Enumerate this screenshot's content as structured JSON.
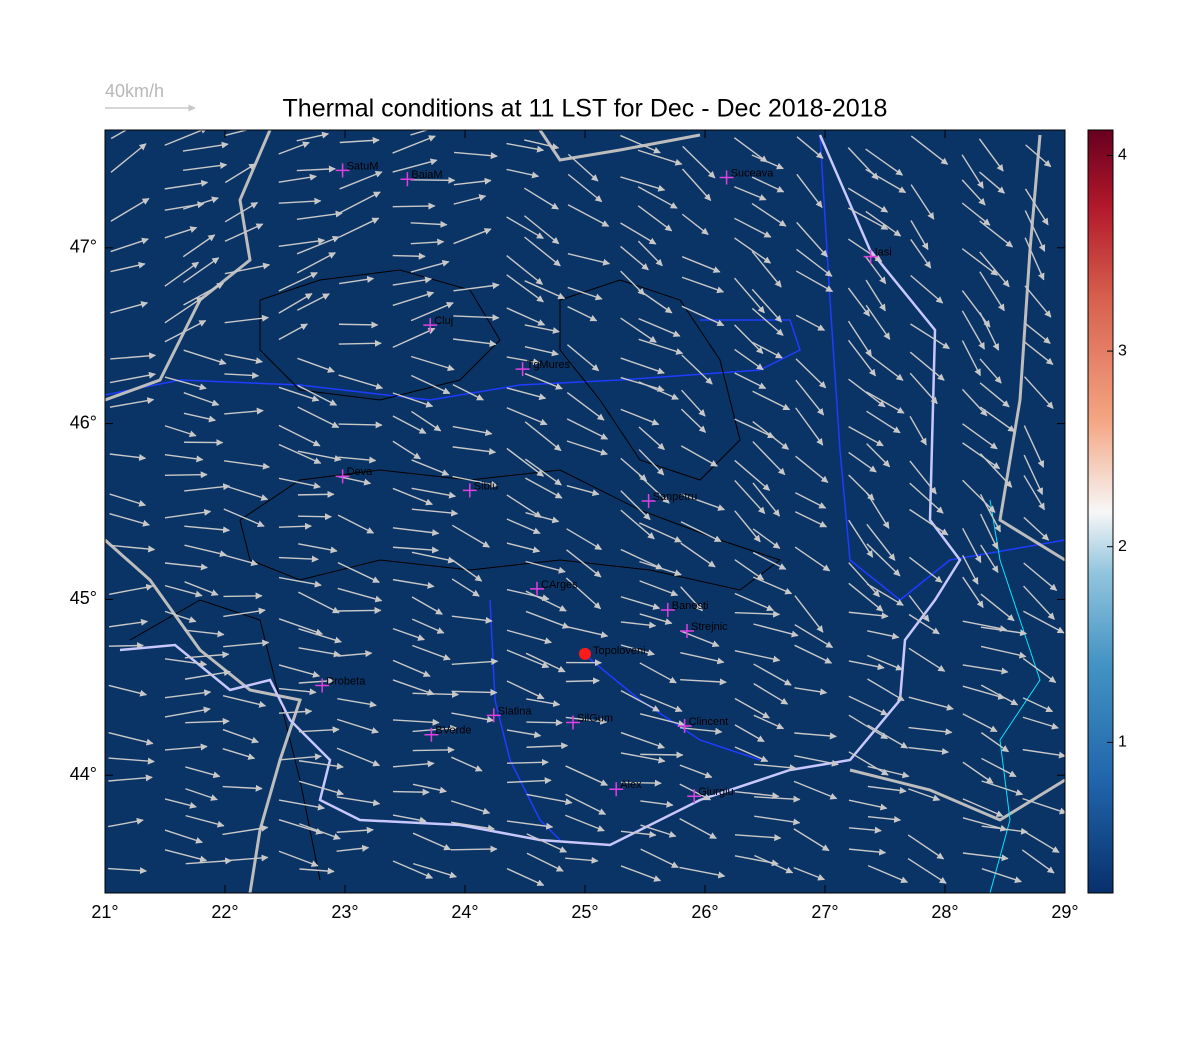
{
  "chart_data": {
    "type": "map",
    "title": "Thermal conditions at 11 LST for Dec - Dec  2018-2018",
    "reference_arrow": "40km/h",
    "xlim": [
      21,
      29
    ],
    "ylim": [
      43.33,
      47.67
    ],
    "xticks": [
      {
        "value": 21,
        "label": "21°"
      },
      {
        "value": 22,
        "label": "22°"
      },
      {
        "value": 23,
        "label": "23°"
      },
      {
        "value": 24,
        "label": "24°"
      },
      {
        "value": 25,
        "label": "25°"
      },
      {
        "value": 26,
        "label": "26°"
      },
      {
        "value": 27,
        "label": "27°"
      },
      {
        "value": 28,
        "label": "28°"
      },
      {
        "value": 29,
        "label": "29°"
      }
    ],
    "yticks": [
      {
        "value": 44,
        "label": "44°"
      },
      {
        "value": 45,
        "label": "45°"
      },
      {
        "value": 46,
        "label": "46°"
      },
      {
        "value": 47,
        "label": "47°"
      }
    ],
    "colorbar": {
      "lim": [
        0.23,
        4.13
      ],
      "ticks": [
        1,
        2,
        3,
        4
      ]
    },
    "stations": [
      {
        "name": "SatuM",
        "lon": 22.98,
        "lat": 47.44
      },
      {
        "name": "BaiaM",
        "lon": 23.52,
        "lat": 47.39
      },
      {
        "name": "Suceava",
        "lon": 26.18,
        "lat": 47.4
      },
      {
        "name": "Iasi",
        "lon": 27.38,
        "lat": 46.95
      },
      {
        "name": "Cluj",
        "lon": 23.71,
        "lat": 46.56
      },
      {
        "name": "TgMures",
        "lon": 24.48,
        "lat": 46.31
      },
      {
        "name": "Deva",
        "lon": 22.98,
        "lat": 45.7
      },
      {
        "name": "Sibiu",
        "lon": 24.04,
        "lat": 45.62
      },
      {
        "name": "Sanpetru",
        "lon": 25.53,
        "lat": 45.56
      },
      {
        "name": "CArges",
        "lon": 24.6,
        "lat": 45.06
      },
      {
        "name": "Banesti",
        "lon": 25.69,
        "lat": 44.94
      },
      {
        "name": "Strejnic",
        "lon": 25.85,
        "lat": 44.82
      },
      {
        "name": "Drobeta",
        "lon": 22.81,
        "lat": 44.51
      },
      {
        "name": "Slatina",
        "lon": 24.24,
        "lat": 44.34
      },
      {
        "name": "SilGum",
        "lon": 24.9,
        "lat": 44.3
      },
      {
        "name": "Clincent",
        "lon": 25.83,
        "lat": 44.28
      },
      {
        "name": "BVerde",
        "lon": 23.72,
        "lat": 44.23
      },
      {
        "name": "Alex",
        "lon": 25.26,
        "lat": 43.92
      },
      {
        "name": "Giurgiu",
        "lon": 25.91,
        "lat": 43.88
      }
    ],
    "highlight": {
      "name": "Topoloveni",
      "lon": 25.0,
      "lat": 44.69,
      "color": "#ff1a1a"
    },
    "station_color": "#e040e0",
    "background": "#0b3466"
  }
}
